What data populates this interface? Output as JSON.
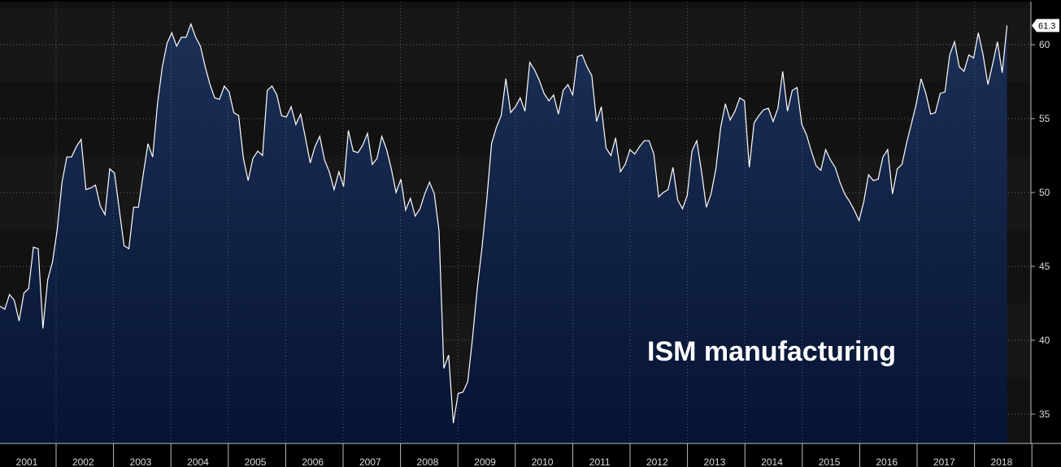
{
  "chart_data": {
    "type": "area",
    "annotation": "ISM manufacturing",
    "last_value_label": "61.3",
    "x_tick_labels": [
      "2001",
      "2002",
      "2003",
      "2004",
      "2005",
      "2006",
      "2007",
      "2008",
      "2009",
      "2010",
      "2011",
      "2012",
      "2013",
      "2014",
      "2015",
      "2016",
      "2017",
      "2018"
    ],
    "y_tick_labels": [
      "35",
      "40",
      "45",
      "50",
      "55",
      "60"
    ],
    "ylim": [
      32,
      62.5
    ],
    "x_start": "2001-01",
    "grid": true,
    "colors": {
      "line": "#ffffff",
      "fill_top": "#1c2f55",
      "fill_bottom": "#0a1838",
      "background": "#000000",
      "plot_bg": "#111111",
      "grid": "#555555"
    },
    "series": [
      {
        "values": [
          42.3,
          42.1,
          43.1,
          42.7,
          41.3,
          43.2,
          43.5,
          46.3,
          46.2,
          40.8,
          44.1,
          45.3,
          47.5,
          50.7,
          52.4,
          52.4,
          53.1,
          53.6,
          50.2,
          50.3,
          50.5,
          49.1,
          48.5,
          51.6,
          51.3,
          48.8,
          46.4,
          46.2,
          49.0,
          49.0,
          51.2,
          53.3,
          52.4,
          56.0,
          58.5,
          60.1,
          60.8,
          59.9,
          60.5,
          60.5,
          61.4,
          60.5,
          59.9,
          58.5,
          57.3,
          56.4,
          56.3,
          57.2,
          56.8,
          55.4,
          55.2,
          52.3,
          50.8,
          52.3,
          52.8,
          52.5,
          56.9,
          57.2,
          56.6,
          55.2,
          55.1,
          55.8,
          54.6,
          55.3,
          53.7,
          52.0,
          53.1,
          53.8,
          52.2,
          51.4,
          50.2,
          51.4,
          50.4,
          54.2,
          52.8,
          52.7,
          53.2,
          54.0,
          51.9,
          52.3,
          53.8,
          52.9,
          51.6,
          50.0,
          50.9,
          48.8,
          49.6,
          48.4,
          48.9,
          49.9,
          50.7,
          49.9,
          47.4,
          38.1,
          39.0,
          34.4,
          36.4,
          36.5,
          37.2,
          40.1,
          43.5,
          46.3,
          49.5,
          53.3,
          54.4,
          55.2,
          57.7,
          55.4,
          55.8,
          56.4,
          55.5,
          58.8,
          58.3,
          57.6,
          56.7,
          56.2,
          56.6,
          55.3,
          56.9,
          57.3,
          56.6,
          59.2,
          59.3,
          58.5,
          57.9,
          54.8,
          55.8,
          53.0,
          52.5,
          53.7,
          51.4,
          51.9,
          52.9,
          52.6,
          53.1,
          53.5,
          53.5,
          52.6,
          49.7,
          50.0,
          50.2,
          51.7,
          49.5,
          48.9,
          49.8,
          52.8,
          53.5,
          51.4,
          49.0,
          49.9,
          51.6,
          54.4,
          56.0,
          54.9,
          55.5,
          56.4,
          56.2,
          51.7,
          54.7,
          55.2,
          55.6,
          55.7,
          54.8,
          55.7,
          58.2,
          55.5,
          56.9,
          57.1,
          54.6,
          53.9,
          52.8,
          51.8,
          51.5,
          52.9,
          52.2,
          51.7,
          50.7,
          49.9,
          49.4,
          48.8,
          48.1,
          49.4,
          51.2,
          50.8,
          50.9,
          52.4,
          52.9,
          49.9,
          51.6,
          51.9,
          53.4,
          54.7,
          56.0,
          57.7,
          56.7,
          55.3,
          55.4,
          56.7,
          56.8,
          59.3,
          60.2,
          58.5,
          58.2,
          59.3,
          59.1,
          60.8,
          59.3,
          57.3,
          58.7,
          60.2,
          58.1,
          61.3
        ]
      }
    ]
  }
}
